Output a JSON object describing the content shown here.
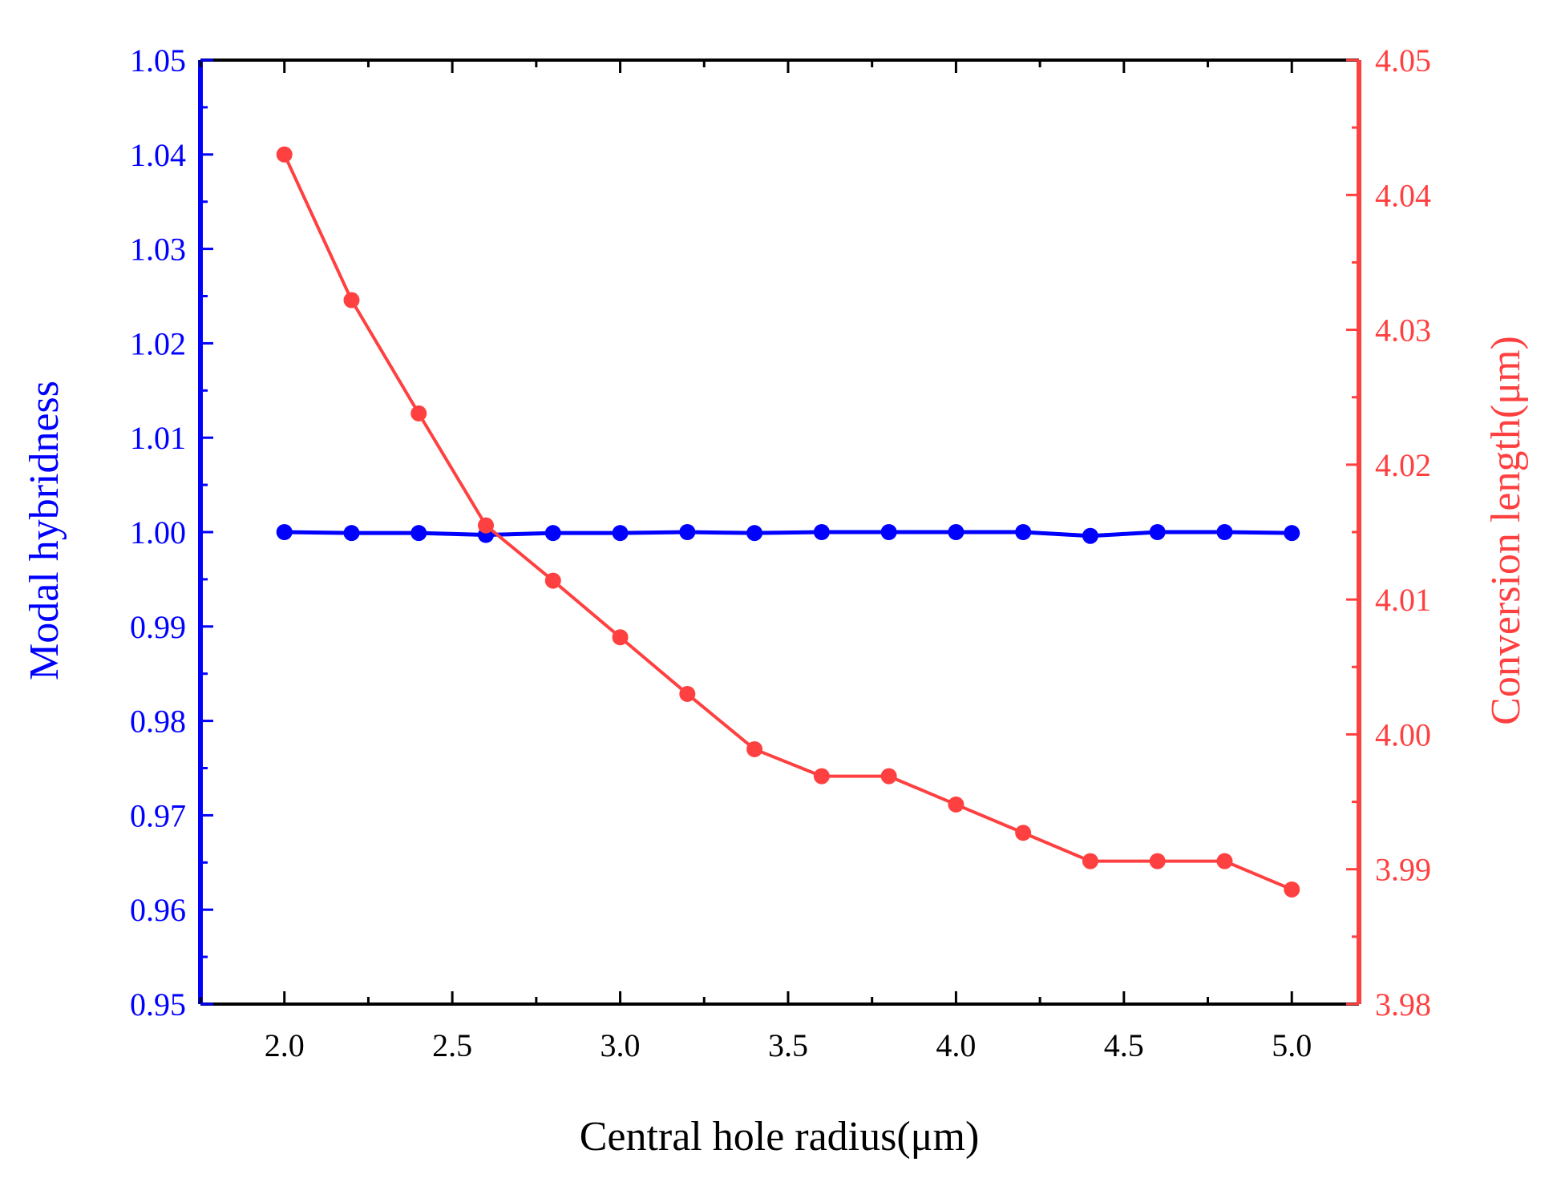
{
  "chart_data": {
    "type": "line",
    "title": "",
    "xlabel": "Central hole radius(μm)",
    "ylabel_left": "Modal hybridness",
    "ylabel_right": "Conversion length(μm)",
    "x": [
      2.0,
      2.2,
      2.4,
      2.6,
      2.8,
      3.0,
      3.2,
      3.4,
      3.6,
      3.8,
      4.0,
      4.2,
      4.4,
      4.6,
      4.8,
      5.0
    ],
    "xlim": [
      1.75,
      5.2
    ],
    "x_ticks": [
      "2.0",
      "2.5",
      "3.0",
      "3.5",
      "4.0",
      "4.5",
      "5.0"
    ],
    "x_tick_values": [
      2.0,
      2.5,
      3.0,
      3.5,
      4.0,
      4.5,
      5.0
    ],
    "ylim_left": [
      0.95,
      1.05
    ],
    "y_ticks_left": [
      "0.95",
      "0.96",
      "0.97",
      "0.98",
      "0.99",
      "1.00",
      "1.01",
      "1.02",
      "1.03",
      "1.04",
      "1.05"
    ],
    "y_tick_values_left": [
      0.95,
      0.96,
      0.97,
      0.98,
      0.99,
      1.0,
      1.01,
      1.02,
      1.03,
      1.04,
      1.05
    ],
    "ylim_right": [
      3.98,
      4.05
    ],
    "y_ticks_right": [
      "3.98",
      "3.99",
      "4.00",
      "4.01",
      "4.02",
      "4.03",
      "4.04",
      "4.05"
    ],
    "y_tick_values_right": [
      3.98,
      3.99,
      4.0,
      4.01,
      4.02,
      4.03,
      4.04,
      4.05
    ],
    "series": [
      {
        "name": "Modal hybridness",
        "axis": "left",
        "color": "#0000ff",
        "values": [
          1.0,
          0.9999,
          0.9999,
          0.9997,
          0.9999,
          0.9999,
          1.0,
          0.9999,
          1.0,
          1.0,
          1.0,
          1.0,
          0.9996,
          1.0,
          1.0,
          0.9999
        ]
      },
      {
        "name": "Conversion length",
        "axis": "right",
        "color": "#ff4040",
        "values": [
          4.043,
          4.0322,
          4.0238,
          4.0155,
          4.0114,
          4.0072,
          4.003,
          3.9989,
          3.9969,
          3.9969,
          3.9948,
          3.9927,
          3.9906,
          3.9906,
          3.9906,
          3.9885
        ]
      }
    ],
    "colors": {
      "left_axis": "#0000ff",
      "right_axis": "#ff4040",
      "frame": "#000000"
    }
  }
}
